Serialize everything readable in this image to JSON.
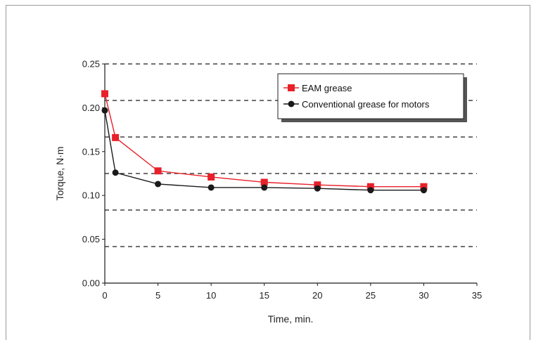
{
  "chart_data": {
    "type": "line",
    "title": "",
    "xlabel": "Time, min.",
    "ylabel": "Torque, N·m",
    "xlim": [
      0,
      35
    ],
    "ylim": [
      0,
      0.25
    ],
    "x_ticks": [
      "0",
      "5",
      "10",
      "15",
      "20",
      "25",
      "30",
      "35"
    ],
    "y_ticks": [
      "0.00",
      "0.05",
      "0.10",
      "0.15",
      "0.20",
      "0.25"
    ],
    "grid": "dashed horizontal",
    "legend_position": "top-right",
    "series": [
      {
        "name": "EAM grease",
        "color": "#e8202a",
        "marker": "square",
        "x": [
          0,
          1,
          5,
          10,
          15,
          20,
          25,
          30
        ],
        "y": [
          0.216,
          0.166,
          0.128,
          0.121,
          0.115,
          0.112,
          0.11,
          0.11
        ]
      },
      {
        "name": "Conventional grease for motors",
        "color": "#1a1a1a",
        "marker": "circle",
        "x": [
          0,
          1,
          5,
          10,
          15,
          20,
          25,
          30
        ],
        "y": [
          0.197,
          0.126,
          0.113,
          0.109,
          0.109,
          0.108,
          0.106,
          0.106
        ]
      }
    ]
  }
}
